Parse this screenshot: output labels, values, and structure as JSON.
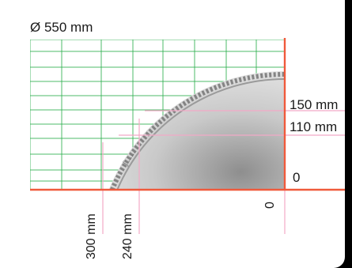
{
  "title": "Ø 550 mm",
  "dimensions": {
    "label_150": "150 mm",
    "label_110": "110 mm",
    "label_0_vertical": "0",
    "label_300": "300 mm",
    "label_240": "240 mm",
    "label_0_horizontal": "0"
  },
  "colors": {
    "grid": "#2fb04f",
    "axis": "#f05a3c",
    "guide": "#f2a9c6",
    "blade": "#bdbdbd",
    "background": "#000000",
    "panel": "#ffffff"
  },
  "icons": [
    "saw-blade-icon"
  ]
}
